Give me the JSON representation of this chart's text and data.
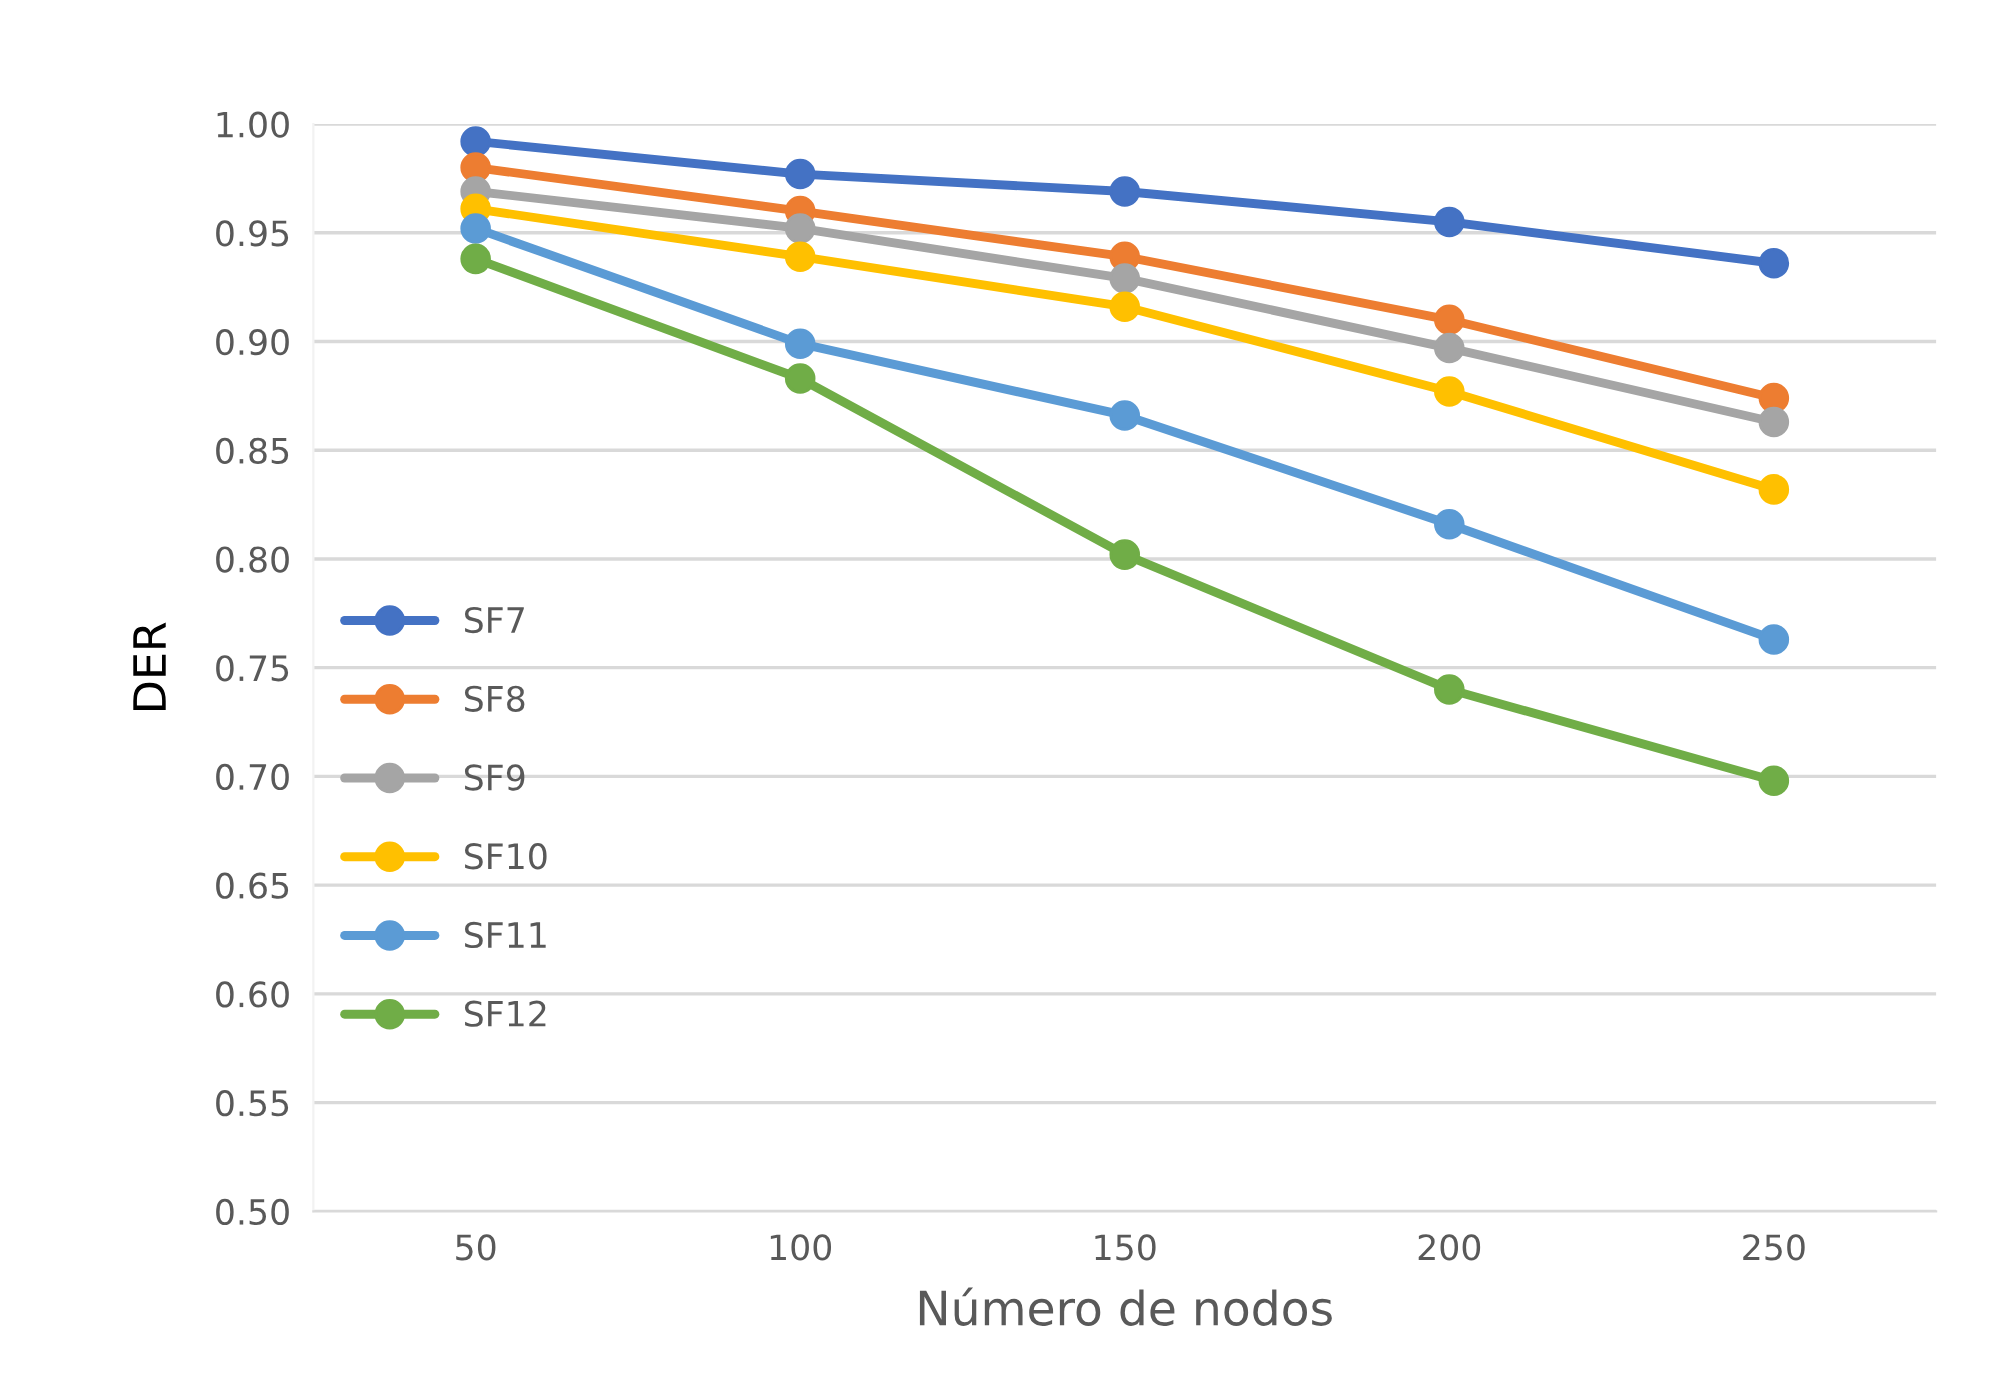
{
  "chart_data": {
    "type": "line",
    "xlabel": "Número de nodos",
    "ylabel": "DER",
    "categories": [
      "50",
      "100",
      "150",
      "200",
      "250"
    ],
    "series": [
      {
        "name": "SF7",
        "color": "#4472c4",
        "values": [
          0.992,
          0.977,
          0.969,
          0.955,
          0.936
        ]
      },
      {
        "name": "SF8",
        "color": "#ed7d31",
        "values": [
          0.98,
          0.96,
          0.939,
          0.91,
          0.874
        ]
      },
      {
        "name": "SF9",
        "color": "#a5a5a5",
        "values": [
          0.969,
          0.952,
          0.929,
          0.897,
          0.863
        ]
      },
      {
        "name": "SF10",
        "color": "#ffc000",
        "values": [
          0.961,
          0.939,
          0.916,
          0.877,
          0.832
        ]
      },
      {
        "name": "SF11",
        "color": "#5b9bd5",
        "values": [
          0.952,
          0.899,
          0.866,
          0.816,
          0.763
        ]
      },
      {
        "name": "SF12",
        "color": "#70ad47",
        "values": [
          0.938,
          0.883,
          0.802,
          0.74,
          0.698
        ]
      }
    ],
    "ylim": [
      0.5,
      1.0
    ],
    "yticks": [
      {
        "value": 0.5,
        "label": "0.50"
      },
      {
        "value": 0.55,
        "label": "0.55"
      },
      {
        "value": 0.6,
        "label": "0.60"
      },
      {
        "value": 0.65,
        "label": "0.65"
      },
      {
        "value": 0.7,
        "label": "0.70"
      },
      {
        "value": 0.75,
        "label": "0.75"
      },
      {
        "value": 0.8,
        "label": "0.80"
      },
      {
        "value": 0.85,
        "label": "0.85"
      },
      {
        "value": 0.9,
        "label": "0.90"
      },
      {
        "value": 0.95,
        "label": "0.95"
      },
      {
        "value": 1.0,
        "label": "1.00"
      }
    ],
    "grid": "y",
    "legend": "left",
    "marker": "circle",
    "line_style": "solid"
  }
}
